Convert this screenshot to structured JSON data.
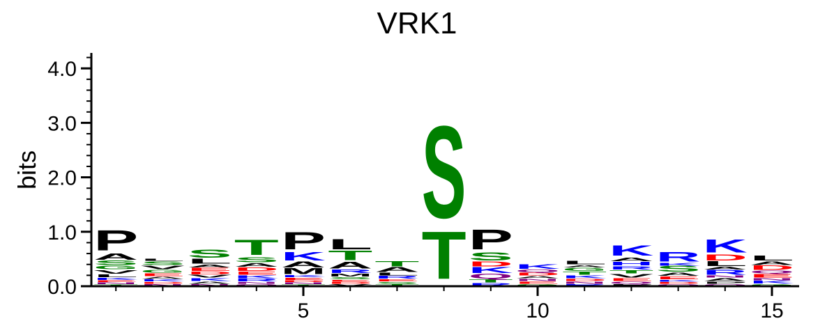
{
  "chart_data": {
    "type": "sequence-logo",
    "title": "VRK1",
    "ylabel": "bits",
    "xlabel": "",
    "ylim": [
      0,
      4.3
    ],
    "y_ticks": [
      {
        "value": 0,
        "label": "0.0"
      },
      {
        "value": 1,
        "label": "1.0"
      },
      {
        "value": 2,
        "label": "2.0"
      },
      {
        "value": 3,
        "label": "3.0"
      },
      {
        "value": 4,
        "label": "4.0"
      }
    ],
    "x_range": [
      0,
      16
    ],
    "x_ticks": [
      {
        "value": 5,
        "label": "5"
      },
      {
        "value": 10,
        "label": "10"
      },
      {
        "value": 15,
        "label": "15"
      }
    ],
    "colors": {
      "K": "#0000ff",
      "R": "#0000ff",
      "H": "#0000ff",
      "D": "#ff0000",
      "E": "#ff0000",
      "S": "#008000",
      "T": "#008000",
      "G": "#008000",
      "Y": "#008000",
      "C": "#008000",
      "N": "#800080",
      "Q": "#800080",
      "A": "#000000",
      "V": "#000000",
      "L": "#000000",
      "I": "#000000",
      "P": "#000000",
      "F": "#000000",
      "M": "#000000",
      "W": "#000000"
    },
    "positions": [
      {
        "pos": 1,
        "stack": [
          [
            "T",
            0.03
          ],
          [
            "N",
            0.04
          ],
          [
            "E",
            0.04
          ],
          [
            "K",
            0.05
          ],
          [
            "L",
            0.06
          ],
          [
            "V",
            0.08
          ],
          [
            "G",
            0.08
          ],
          [
            "S",
            0.09
          ],
          [
            "A",
            0.13
          ],
          [
            "P",
            0.43
          ]
        ]
      },
      {
        "pos": 2,
        "stack": [
          [
            "N",
            0.04
          ],
          [
            "D",
            0.04
          ],
          [
            "K",
            0.05
          ],
          [
            "A",
            0.05
          ],
          [
            "E",
            0.06
          ],
          [
            "G",
            0.06
          ],
          [
            "V",
            0.08
          ],
          [
            "S",
            0.08
          ],
          [
            "L",
            0.05
          ]
        ]
      },
      {
        "pos": 3,
        "stack": [
          [
            "N",
            0.04
          ],
          [
            "A",
            0.05
          ],
          [
            "K",
            0.06
          ],
          [
            "V",
            0.06
          ],
          [
            "D",
            0.06
          ],
          [
            "E",
            0.07
          ],
          [
            "A",
            0.06
          ],
          [
            "L",
            0.1
          ],
          [
            "S",
            0.17
          ]
        ]
      },
      {
        "pos": 4,
        "stack": [
          [
            "Q",
            0.04
          ],
          [
            "N",
            0.04
          ],
          [
            "R",
            0.06
          ],
          [
            "K",
            0.06
          ],
          [
            "E",
            0.07
          ],
          [
            "D",
            0.08
          ],
          [
            "A",
            0.08
          ],
          [
            "S",
            0.1
          ],
          [
            "T",
            0.32
          ]
        ]
      },
      {
        "pos": 5,
        "stack": [
          [
            "T",
            0.03
          ],
          [
            "N",
            0.04
          ],
          [
            "D",
            0.04
          ],
          [
            "E",
            0.05
          ],
          [
            "K",
            0.05
          ],
          [
            "M",
            0.12
          ],
          [
            "A",
            0.12
          ],
          [
            "K",
            0.18
          ],
          [
            "P",
            0.36
          ]
        ]
      },
      {
        "pos": 6,
        "stack": [
          [
            "V",
            0.04
          ],
          [
            "D",
            0.04
          ],
          [
            "E",
            0.04
          ],
          [
            "S",
            0.05
          ],
          [
            "M",
            0.06
          ],
          [
            "R",
            0.08
          ],
          [
            "A",
            0.14
          ],
          [
            "T",
            0.2
          ],
          [
            "L",
            0.22
          ]
        ]
      },
      {
        "pos": 7,
        "stack": [
          [
            "T",
            0.04
          ],
          [
            "S",
            0.04
          ],
          [
            "E",
            0.05
          ],
          [
            "R",
            0.06
          ],
          [
            "L",
            0.06
          ],
          [
            "A",
            0.1
          ],
          [
            "T",
            0.11
          ]
        ]
      },
      {
        "pos": 8,
        "stack": [
          [
            "T",
            1.0
          ],
          [
            "S",
            1.95
          ]
        ]
      },
      {
        "pos": 9,
        "stack": [
          [
            "R",
            0.06
          ],
          [
            "T",
            0.07
          ],
          [
            "Q",
            0.1
          ],
          [
            "K",
            0.12
          ],
          [
            "D",
            0.1
          ],
          [
            "S",
            0.17
          ],
          [
            "P",
            0.42
          ]
        ]
      },
      {
        "pos": 10,
        "stack": [
          [
            "G",
            0.04
          ],
          [
            "E",
            0.05
          ],
          [
            "N",
            0.05
          ],
          [
            "A",
            0.05
          ],
          [
            "D",
            0.06
          ],
          [
            "Q",
            0.06
          ],
          [
            "K",
            0.09
          ]
        ]
      },
      {
        "pos": 11,
        "stack": [
          [
            "R",
            0.04
          ],
          [
            "N",
            0.05
          ],
          [
            "D",
            0.05
          ],
          [
            "K",
            0.06
          ],
          [
            "T",
            0.07
          ],
          [
            "G",
            0.07
          ],
          [
            "A",
            0.05
          ],
          [
            "L",
            0.08
          ]
        ]
      },
      {
        "pos": 12,
        "stack": [
          [
            "P",
            0.04
          ],
          [
            "Q",
            0.05
          ],
          [
            "E",
            0.06
          ],
          [
            "V",
            0.08
          ],
          [
            "T",
            0.07
          ],
          [
            "R",
            0.07
          ],
          [
            "H",
            0.08
          ],
          [
            "A",
            0.08
          ],
          [
            "K",
            0.22
          ]
        ]
      },
      {
        "pos": 13,
        "stack": [
          [
            "Q",
            0.04
          ],
          [
            "D",
            0.04
          ],
          [
            "K",
            0.04
          ],
          [
            "E",
            0.06
          ],
          [
            "A",
            0.07
          ],
          [
            "S",
            0.12
          ],
          [
            "K",
            0.06
          ],
          [
            "R",
            0.2
          ]
        ]
      },
      {
        "pos": 14,
        "stack": [
          [
            "Q",
            0.04
          ],
          [
            "P",
            0.05
          ],
          [
            "A",
            0.06
          ],
          [
            "N",
            0.05
          ],
          [
            "R",
            0.1
          ],
          [
            "A",
            0.06
          ],
          [
            "L",
            0.1
          ],
          [
            "D",
            0.12
          ],
          [
            "K",
            0.28
          ]
        ]
      },
      {
        "pos": 15,
        "stack": [
          [
            "G",
            0.04
          ],
          [
            "K",
            0.06
          ],
          [
            "N",
            0.05
          ],
          [
            "E",
            0.08
          ],
          [
            "Q",
            0.06
          ],
          [
            "D",
            0.09
          ],
          [
            "A",
            0.08
          ],
          [
            "L",
            0.1
          ]
        ]
      }
    ]
  }
}
